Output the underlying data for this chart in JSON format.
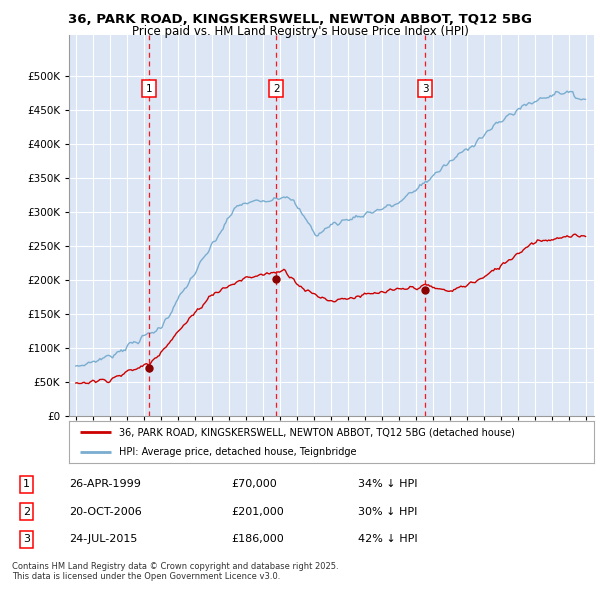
{
  "title_line1": "36, PARK ROAD, KINGSKERSWELL, NEWTON ABBOT, TQ12 5BG",
  "title_line2": "Price paid vs. HM Land Registry's House Price Index (HPI)",
  "background_color": "#ffffff",
  "plot_bg_color": "#dce6f5",
  "grid_color": "#ffffff",
  "red_line_color": "#cc0000",
  "blue_line_color": "#7aadcf",
  "sale_dates": [
    1999.32,
    2006.8,
    2015.56
  ],
  "sale_prices": [
    70000,
    201000,
    186000
  ],
  "sale_labels": [
    "1",
    "2",
    "3"
  ],
  "sale_info": [
    {
      "num": "1",
      "date": "26-APR-1999",
      "price": "£70,000",
      "note": "34% ↓ HPI"
    },
    {
      "num": "2",
      "date": "20-OCT-2006",
      "price": "£201,000",
      "note": "30% ↓ HPI"
    },
    {
      "num": "3",
      "date": "24-JUL-2015",
      "price": "£186,000",
      "note": "42% ↓ HPI"
    }
  ],
  "legend_label_red": "36, PARK ROAD, KINGSKERSWELL, NEWTON ABBOT, TQ12 5BG (detached house)",
  "legend_label_blue": "HPI: Average price, detached house, Teignbridge",
  "footnote": "Contains HM Land Registry data © Crown copyright and database right 2025.\nThis data is licensed under the Open Government Licence v3.0.",
  "xmin": 1994.6,
  "xmax": 2025.5,
  "ymin": 0,
  "ymax": 560000,
  "yticks": [
    0,
    50000,
    100000,
    150000,
    200000,
    250000,
    300000,
    350000,
    400000,
    450000,
    500000
  ]
}
